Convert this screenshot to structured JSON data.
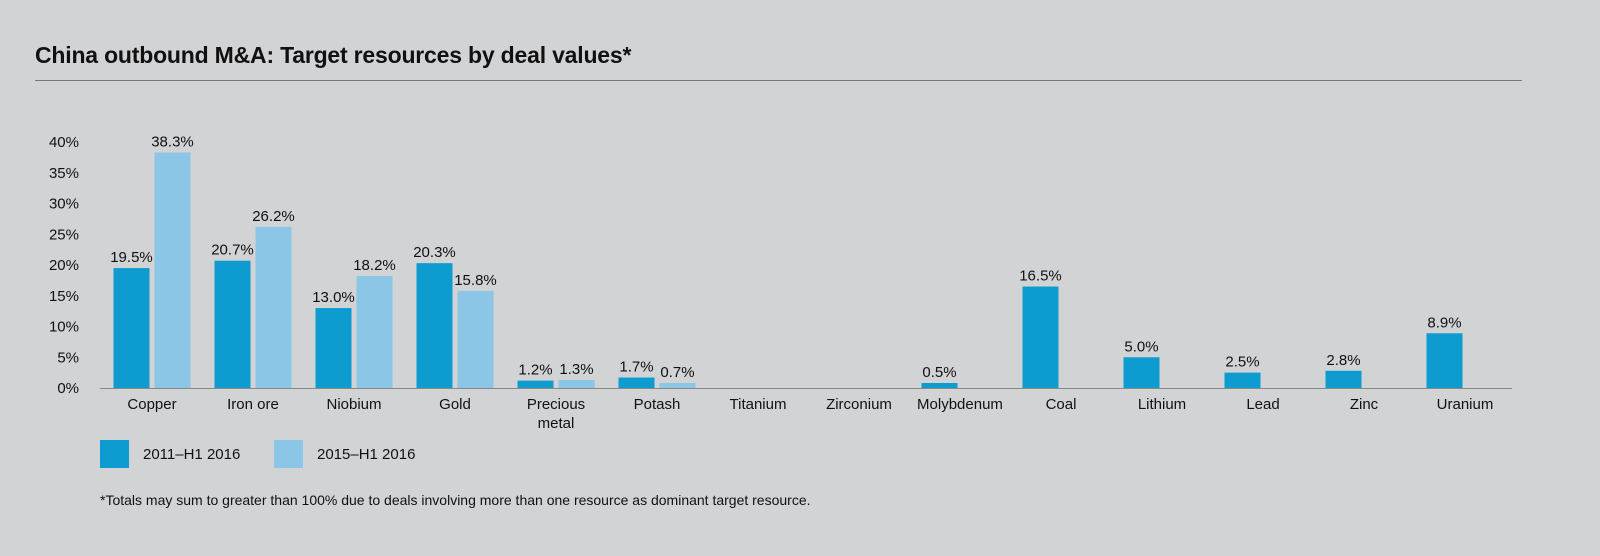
{
  "title": "China outbound M&A: Target resources by deal values*",
  "footnote": "*Totals may sum to greater than 100% due to deals involving more than one resource as dominant target resource.",
  "colors": {
    "series1": "#0e9bcf",
    "series2": "#8cc6e6",
    "axis": "#888888"
  },
  "chart_data": {
    "type": "bar",
    "title": "China outbound M&A: Target resources by deal values*",
    "xlabel": "",
    "ylabel": "",
    "ylim": [
      0,
      40
    ],
    "yticks": [
      "0%",
      "5%",
      "10%",
      "15%",
      "20%",
      "25%",
      "30%",
      "35%",
      "40%"
    ],
    "ytick_values": [
      0,
      5,
      10,
      15,
      20,
      25,
      30,
      35,
      40
    ],
    "grid": false,
    "legend": "bottom-left",
    "categories": [
      [
        "Copper"
      ],
      [
        "Iron ore"
      ],
      [
        "Niobium"
      ],
      [
        "Gold"
      ],
      [
        "Precious",
        "metal"
      ],
      [
        "Potash"
      ],
      [
        "Titanium"
      ],
      [
        "Zirconium"
      ],
      [
        "Molybdenum"
      ],
      [
        "Coal"
      ],
      [
        "Lithium"
      ],
      [
        "Lead"
      ],
      [
        "Zinc"
      ],
      [
        "Uranium"
      ]
    ],
    "series": [
      {
        "name": "2011–H1 2016",
        "values": [
          19.5,
          20.7,
          13.0,
          20.3,
          1.2,
          1.7,
          null,
          null,
          0.5,
          16.5,
          5.0,
          2.5,
          2.8,
          8.9
        ],
        "labels": [
          "19.5%",
          "20.7%",
          "13.0%",
          "20.3%",
          "1.2%",
          "1.7%",
          null,
          null,
          "0.5%",
          "16.5%",
          "5.0%",
          "2.5%",
          "2.8%",
          "8.9%"
        ]
      },
      {
        "name": "2015–H1 2016",
        "values": [
          38.3,
          26.2,
          18.2,
          15.8,
          1.3,
          0.7,
          null,
          null,
          null,
          null,
          null,
          null,
          null,
          null
        ],
        "labels": [
          "38.3%",
          "26.2%",
          "18.2%",
          "15.8%",
          "1.3%",
          "0.7%",
          null,
          null,
          null,
          null,
          null,
          null,
          null,
          null
        ]
      }
    ]
  }
}
